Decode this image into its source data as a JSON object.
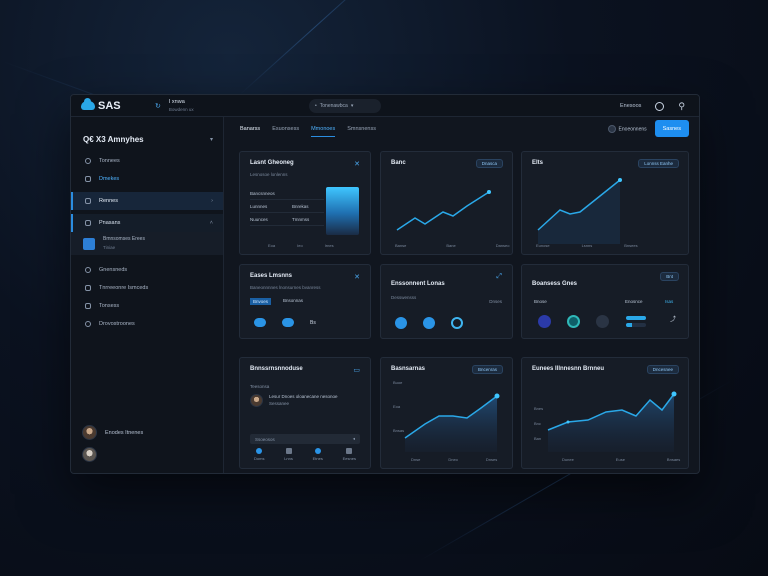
{
  "topbar": {
    "brand": "SAS",
    "user_name": "I xnwa",
    "user_sub": "Bowdenn ux",
    "search": "Tonenawbca",
    "account_label": "Enesoos"
  },
  "sidebar": {
    "header": "Q€ X3 Amnyhes",
    "items": [
      {
        "label": "Tonnees",
        "icon": "clock-icon"
      },
      {
        "label": "Dmekes",
        "icon": "calendar-icon"
      },
      {
        "label": "Rennes",
        "icon": "lock-icon"
      },
      {
        "label": "Pnasans",
        "icon": "image-icon"
      }
    ],
    "sub": {
      "title": "Bmnsomses Erees",
      "subtitle": "Tiniae"
    },
    "items2": [
      {
        "label": "Gnensneds",
        "icon": "bell-icon"
      },
      {
        "label": "Tnrreeonre Ismceds",
        "icon": "message-icon"
      },
      {
        "label": "Tonsess",
        "icon": "file-icon"
      },
      {
        "label": "Drovostroones",
        "icon": "settings-icon"
      }
    ],
    "users": [
      {
        "name": "Enodes Itnenes"
      },
      {
        "name": ""
      }
    ]
  },
  "main": {
    "tabs": [
      "Banarss",
      "Esuonsess",
      "Mmonoes",
      "Smnsnenss"
    ],
    "filter_label": "Enoeonnens",
    "primary_button": "Sasnes"
  },
  "cards": {
    "c1": {
      "title": "Lasnt Gheoneg",
      "subtitle": "Lesnosoe lonlenns",
      "rows": [
        [
          "Bancsnneos",
          ""
        ],
        [
          "Lunnnes",
          "Bnrekas"
        ],
        [
          "Nuunces",
          "Tmnmss"
        ]
      ],
      "axis": [
        "Eoa",
        "Ieo",
        "Irnes"
      ]
    },
    "c2": {
      "title": "Banc",
      "badge": "Dnasca",
      "axis": [
        "Banse",
        "Bane",
        "Danseo"
      ]
    },
    "c3": {
      "title": "Elts",
      "badge": "Lonnss Eanhe",
      "axis": [
        "Eunose",
        "Lsnns",
        "Bnsees"
      ]
    },
    "c4": {
      "title": "Eases Lmsnns",
      "subtitle": "Baneonnnnes lnonsurnes bvanress",
      "tags": [
        "Bnvoes",
        "Bnsonnas"
      ],
      "value": "Bs"
    },
    "c5": {
      "title": "Enssonnent Lonas",
      "subtitle": "Desswensss",
      "value": "Dnses"
    },
    "c6": {
      "title": "Boansess Gnes",
      "badge": "Bnt",
      "left": "Bnose",
      "right": "Enosnce",
      "right_val": "Isas"
    },
    "c7": {
      "title": "Bnnssrnsnnoduse",
      "sub1": "Teesonsa",
      "sub2": "Iesuans",
      "msg": "Lesur Dnoes oloanecane nesonoe",
      "msg2": "Sessanee",
      "input": "Ssoeosos",
      "icons": [
        "Doms",
        "Lnns",
        "Etnes",
        "Eesnes"
      ]
    },
    "c8": {
      "title": "Basnsarnas",
      "badge": "Bncenras",
      "y": [
        "Buoe",
        "Eoa",
        "Bnsas"
      ],
      "axis": [
        "Dnse",
        "Dneo",
        "Dnses"
      ]
    },
    "c9": {
      "title": "Eunees Illnnesnn Brnneu",
      "badge": "Dncesnee",
      "y": [
        "Bnes",
        "Bnc",
        "Ban"
      ],
      "axis": [
        "Dunee",
        "Euse",
        "Bnsaes"
      ]
    }
  },
  "colors": {
    "accent": "#1e8ef0",
    "cyan": "#3fc6ff",
    "panel": "#161c26"
  }
}
